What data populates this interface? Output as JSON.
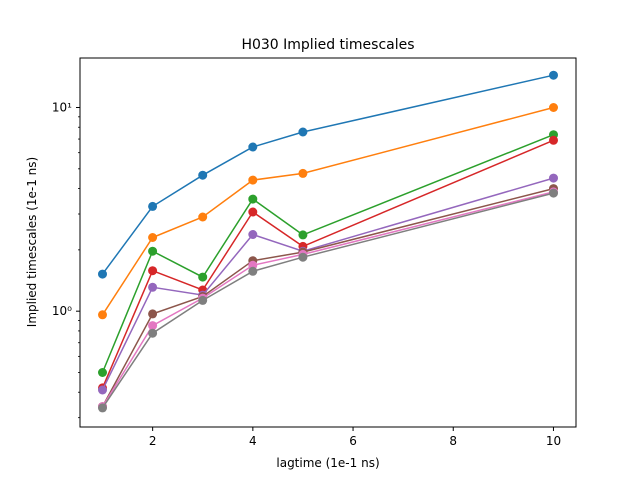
{
  "chart_data": {
    "type": "line",
    "title": "H030 Implied timescales",
    "xlabel": "lagtime (1e-1 ns)",
    "ylabel": "Implied timescales (1e-1 ns)",
    "x": [
      1,
      2,
      3,
      4,
      5,
      10
    ],
    "xlim": [
      0.55,
      10.45
    ],
    "ylim": [
      0.27,
      17.5
    ],
    "yscale": "log",
    "xticks": [
      2,
      4,
      6,
      8,
      10
    ],
    "xtick_labels": [
      "2",
      "4",
      "6",
      "8",
      "10"
    ],
    "ytick_values": [
      1,
      10
    ],
    "ytick_labels": [
      "10⁰",
      "10¹"
    ],
    "grid": false,
    "legend": "none",
    "series": [
      {
        "color": "#1f77b4",
        "values": [
          1.52,
          3.27,
          4.65,
          6.4,
          7.58,
          14.4
        ]
      },
      {
        "color": "#ff7f0e",
        "values": [
          0.96,
          2.3,
          2.9,
          4.4,
          4.75,
          10.0
        ]
      },
      {
        "color": "#2ca02c",
        "values": [
          0.5,
          1.97,
          1.47,
          3.55,
          2.37,
          7.35
        ]
      },
      {
        "color": "#d62728",
        "values": [
          0.42,
          1.58,
          1.27,
          3.07,
          2.08,
          6.9
        ]
      },
      {
        "color": "#9467bd",
        "values": [
          0.41,
          1.31,
          1.2,
          2.38,
          1.97,
          4.5
        ]
      },
      {
        "color": "#8c564b",
        "values": [
          0.34,
          0.97,
          1.18,
          1.77,
          1.95,
          4.0
        ]
      },
      {
        "color": "#e377c2",
        "values": [
          0.34,
          0.85,
          1.16,
          1.68,
          1.9,
          3.85
        ]
      },
      {
        "color": "#7f7f7f",
        "values": [
          0.335,
          0.78,
          1.13,
          1.57,
          1.84,
          3.8
        ]
      }
    ]
  }
}
